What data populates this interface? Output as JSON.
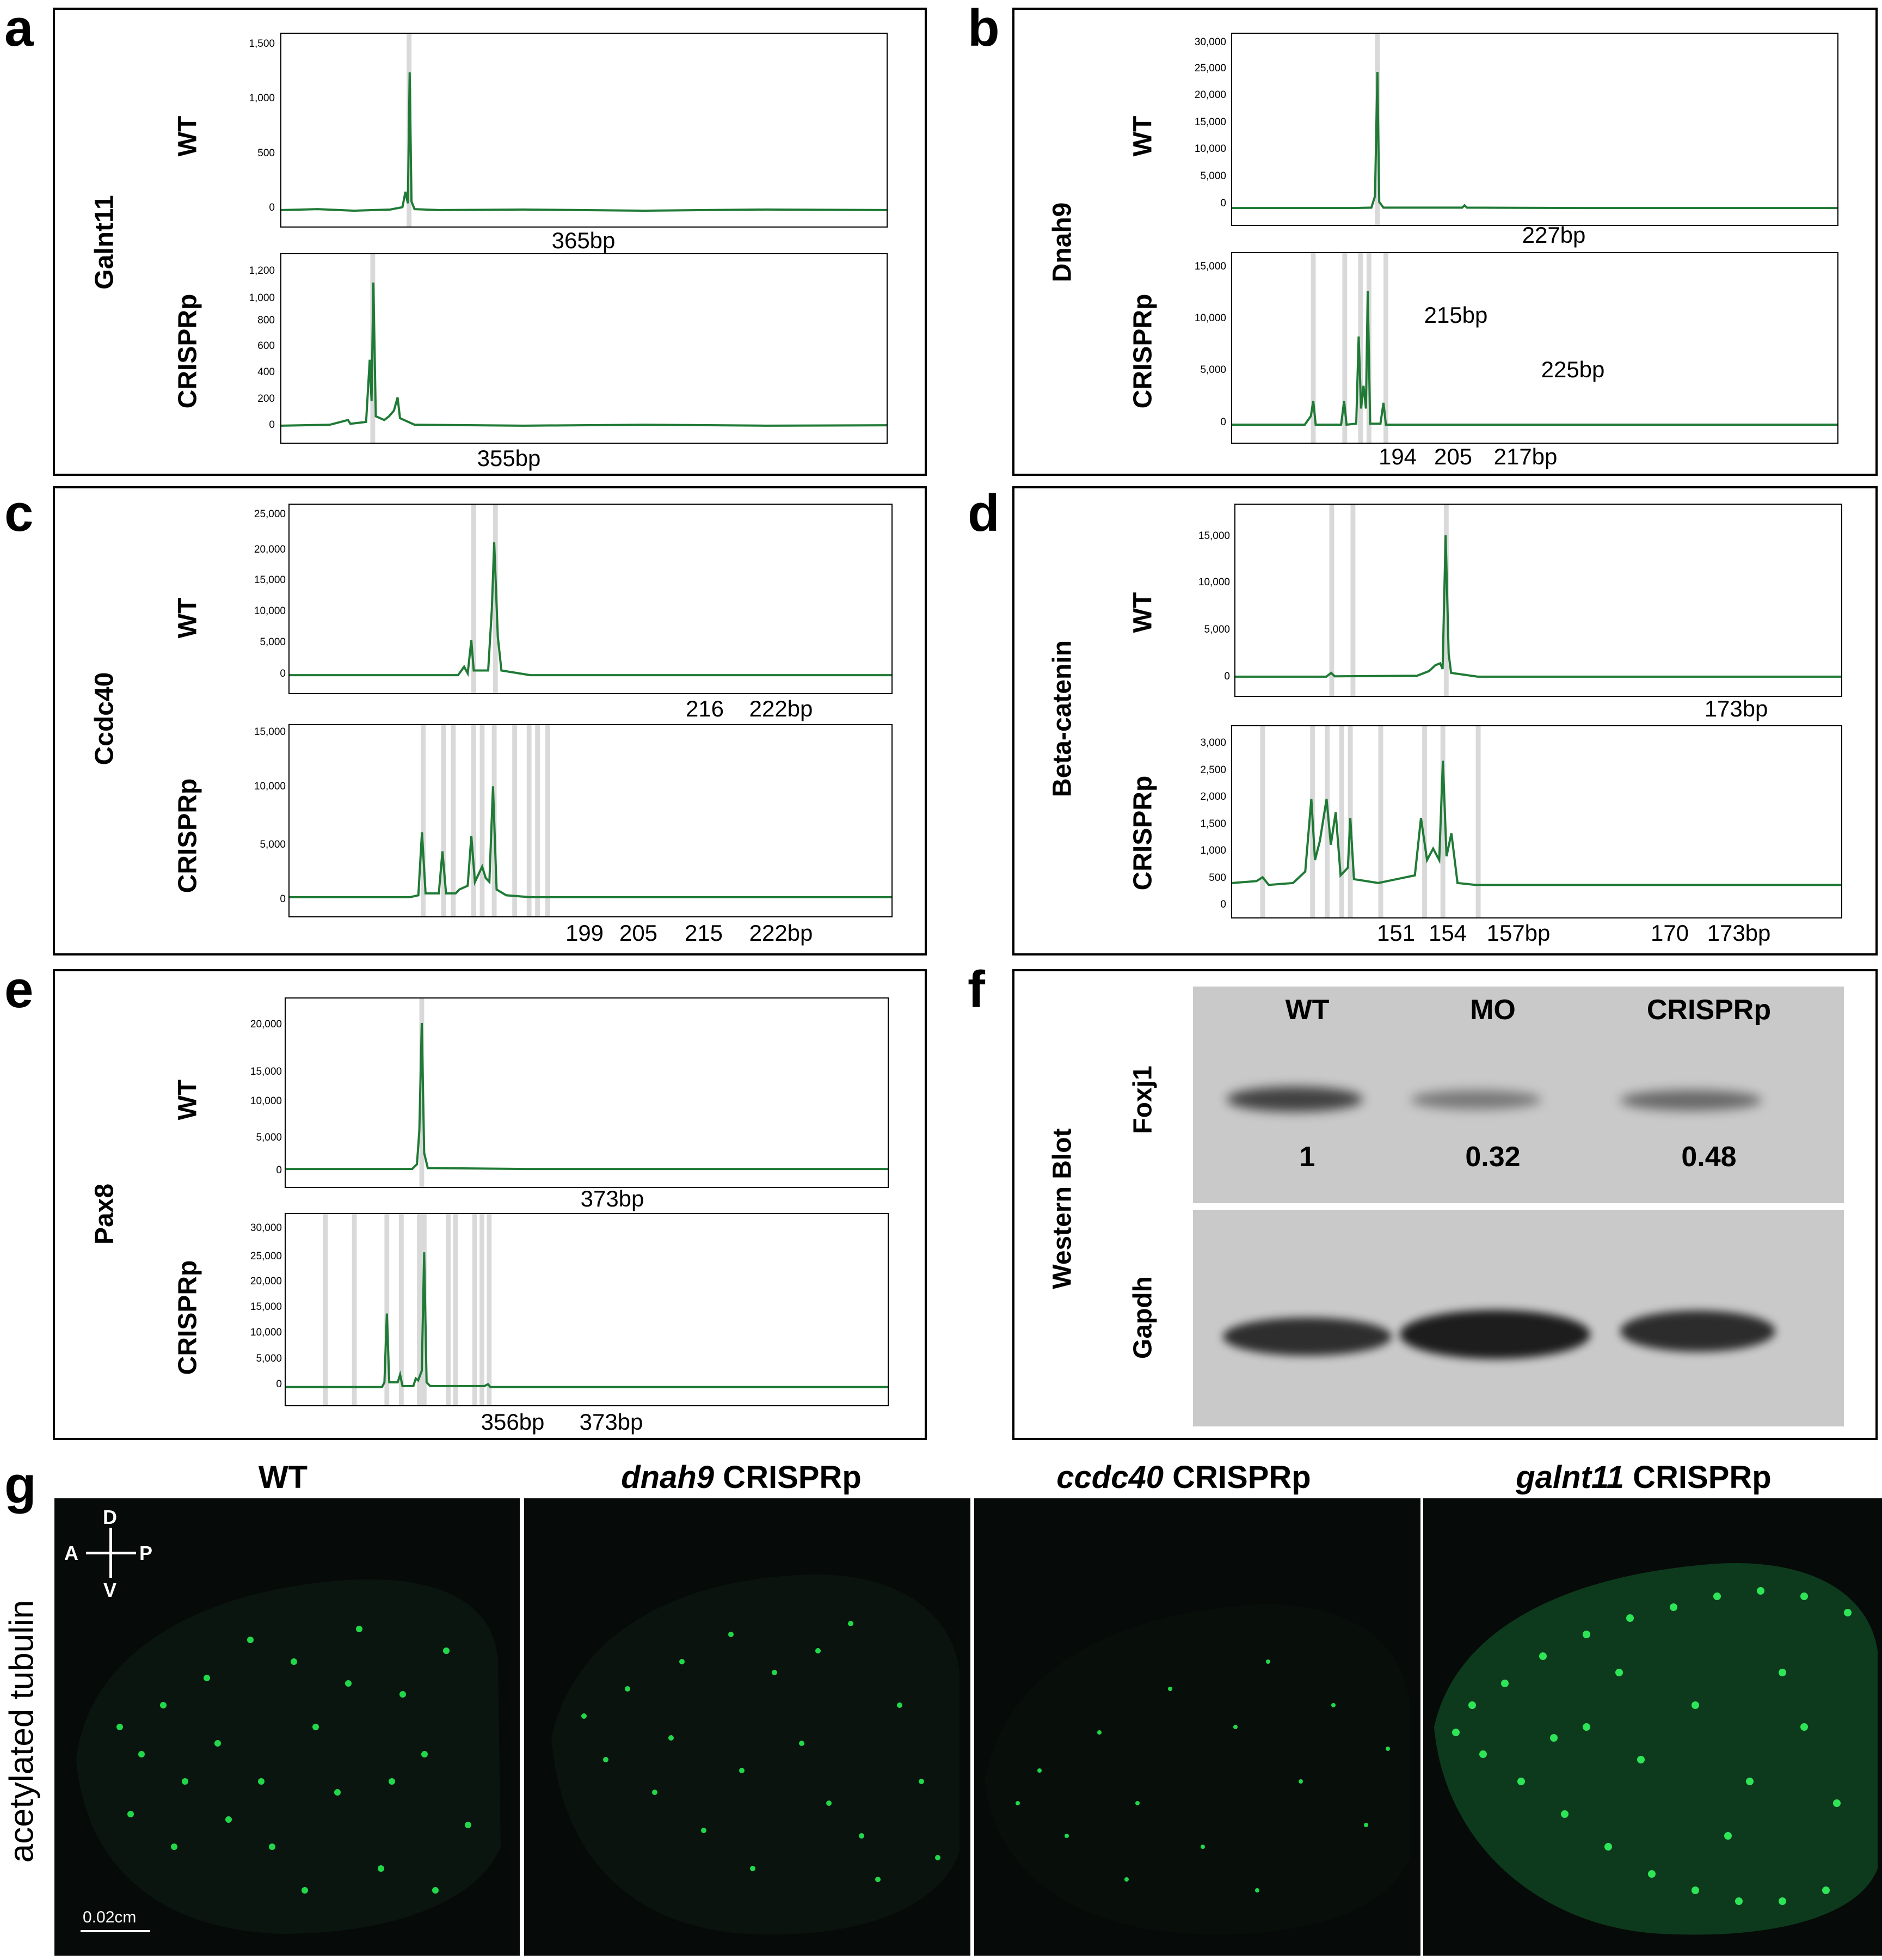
{
  "panels": {
    "a": {
      "letter": "a",
      "gene": "Galnt11",
      "wt_label": "WT",
      "crispr_label": "CRISPRp",
      "wt_yticks": [
        "1,500",
        "1,000",
        "500",
        "0"
      ],
      "crispr_yticks": [
        "1,200",
        "1,000",
        "800",
        "600",
        "400",
        "200",
        "0"
      ],
      "wt_ann": [
        "365bp"
      ],
      "crispr_ann": [
        "355bp"
      ]
    },
    "b": {
      "letter": "b",
      "gene": "Dnah9",
      "wt_label": "WT",
      "crispr_label": "CRISPRp",
      "wt_yticks": [
        "30,000",
        "25,000",
        "20,000",
        "15,000",
        "10,000",
        "5,000",
        "0"
      ],
      "crispr_yticks": [
        "15,000",
        "10,000",
        "5,000",
        "0"
      ],
      "wt_ann": [
        "227bp"
      ],
      "crispr_ann": [
        "215bp",
        "225bp",
        "194",
        "205",
        "217bp"
      ]
    },
    "c": {
      "letter": "c",
      "gene": "Ccdc40",
      "wt_label": "WT",
      "crispr_label": "CRISPRp",
      "wt_yticks": [
        "25,000",
        "20,000",
        "15,000",
        "10,000",
        "5,000",
        "0"
      ],
      "crispr_yticks": [
        "15,000",
        "10,000",
        "5,000",
        "0"
      ],
      "wt_ann": [
        "216",
        "222bp"
      ],
      "crispr_ann": [
        "199",
        "205",
        "215",
        "222bp"
      ]
    },
    "d": {
      "letter": "d",
      "gene": "Beta-catenin",
      "wt_label": "WT",
      "crispr_label": "CRISPRp",
      "wt_yticks": [
        "15,000",
        "10,000",
        "5,000",
        "0"
      ],
      "crispr_yticks": [
        "3,000",
        "2,500",
        "2,000",
        "1,500",
        "1,000",
        "500",
        "0"
      ],
      "wt_ann": [
        "173bp"
      ],
      "crispr_ann": [
        "151",
        "154",
        "157bp",
        "170",
        "173bp"
      ]
    },
    "e": {
      "letter": "e",
      "gene": "Pax8",
      "wt_label": "WT",
      "crispr_label": "CRISPRp",
      "wt_yticks": [
        "20,000",
        "15,000",
        "10,000",
        "5,000",
        "0"
      ],
      "crispr_yticks": [
        "30,000",
        "25,000",
        "20,000",
        "15,000",
        "10,000",
        "5,000",
        "0"
      ],
      "wt_ann": [
        "373bp"
      ],
      "crispr_ann": [
        "356bp",
        "373bp"
      ]
    }
  },
  "western": {
    "letter": "f",
    "title": "Western Blot",
    "lanes": [
      "WT",
      "MO",
      "CRISPRp"
    ],
    "foxj1_label": "Foxj1",
    "gapdh_label": "Gapdh",
    "ratios": [
      "1",
      "0.32",
      "0.48"
    ]
  },
  "imaging": {
    "letter": "g",
    "side_label": "acetylated tubulin",
    "scale_bar": "0.02cm",
    "compass": {
      "d": "D",
      "v": "V",
      "a": "A",
      "p": "P"
    },
    "columns": [
      {
        "gene": "",
        "suffix": "WT"
      },
      {
        "gene": "dnah9",
        "suffix": " CRISPRp"
      },
      {
        "gene": "ccdc40",
        "suffix": " CRISPRp"
      },
      {
        "gene": "galnt11",
        "suffix": " CRISPRp"
      }
    ]
  },
  "colors": {
    "trace": "#1f7a35",
    "marker": "#d9d9d9",
    "nuclei": "#22d84a",
    "wb_bg": "#c9c9c9",
    "wb_band": "#202020"
  }
}
